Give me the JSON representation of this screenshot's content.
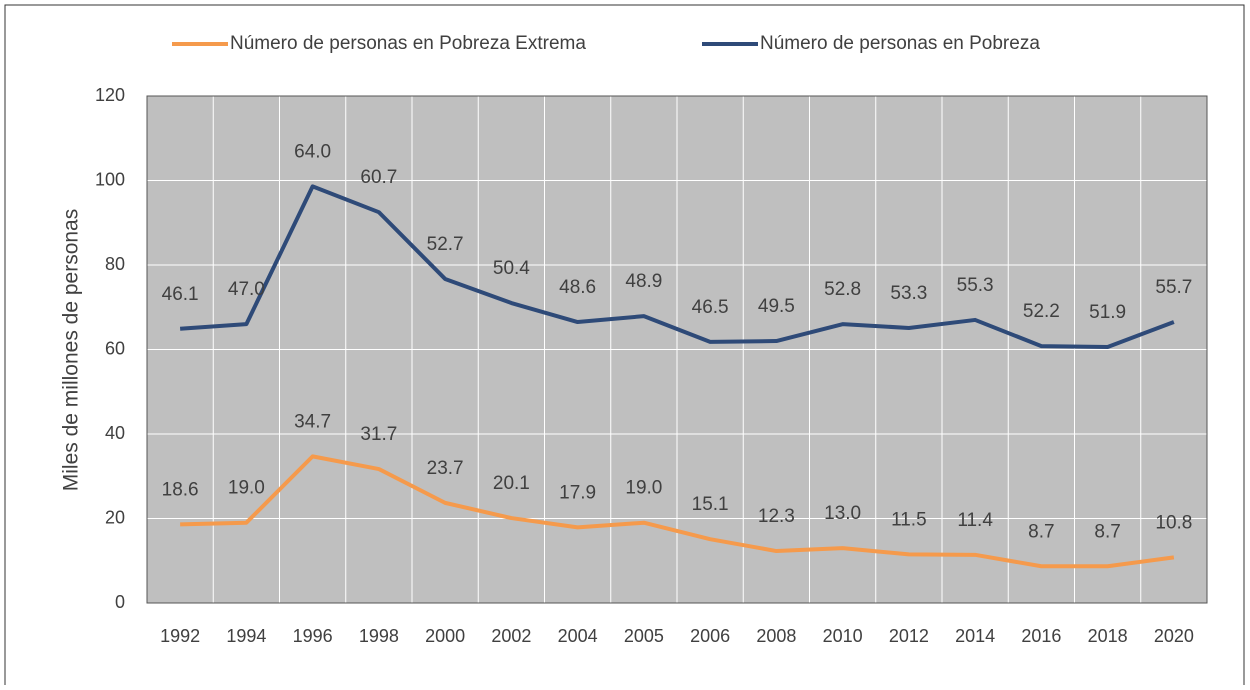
{
  "chart_data": {
    "type": "line",
    "y_label": "Miles de millones de personas",
    "categories": [
      "1992",
      "1994",
      "1996",
      "1998",
      "2000",
      "2002",
      "2004",
      "2005",
      "2006",
      "2008",
      "2010",
      "2012",
      "2014",
      "2016",
      "2018",
      "2020"
    ],
    "series": [
      {
        "name": "Número de personas en  Pobreza Extrema",
        "color": "#f59a4c",
        "values": [
          18.6,
          19.0,
          34.7,
          31.7,
          23.7,
          20.1,
          17.9,
          19.0,
          15.1,
          12.3,
          13.0,
          11.5,
          11.4,
          8.7,
          8.7,
          10.8
        ],
        "value_labels": [
          "18.6",
          "19.0",
          "34.7",
          "31.7",
          "23.7",
          "20.1",
          "17.9",
          "19.0",
          "15.1",
          "12.3",
          "13.0",
          "11.5",
          "11.4",
          "8.7",
          "8.7",
          "10.8"
        ]
      },
      {
        "name": "Número de personas en  Pobreza",
        "color": "#2e4a78",
        "values": [
          64.9,
          66.0,
          98.6,
          92.5,
          76.7,
          71.0,
          66.5,
          67.9,
          61.8,
          62.0,
          66.0,
          65.1,
          67.0,
          60.8,
          60.6,
          66.5
        ],
        "annotations": [
          "46.1",
          "47.0",
          "64.0",
          "60.7",
          "52.7",
          "50.4",
          "48.6",
          "48.9",
          "46.5",
          "49.5",
          "52.8",
          "53.3",
          "55.3",
          "52.2",
          "51.9",
          "55.7"
        ]
      }
    ],
    "ylim": [
      0,
      120
    ],
    "yticks": [
      0,
      20,
      40,
      60,
      80,
      100,
      120
    ],
    "grid": true,
    "legend": "top"
  }
}
